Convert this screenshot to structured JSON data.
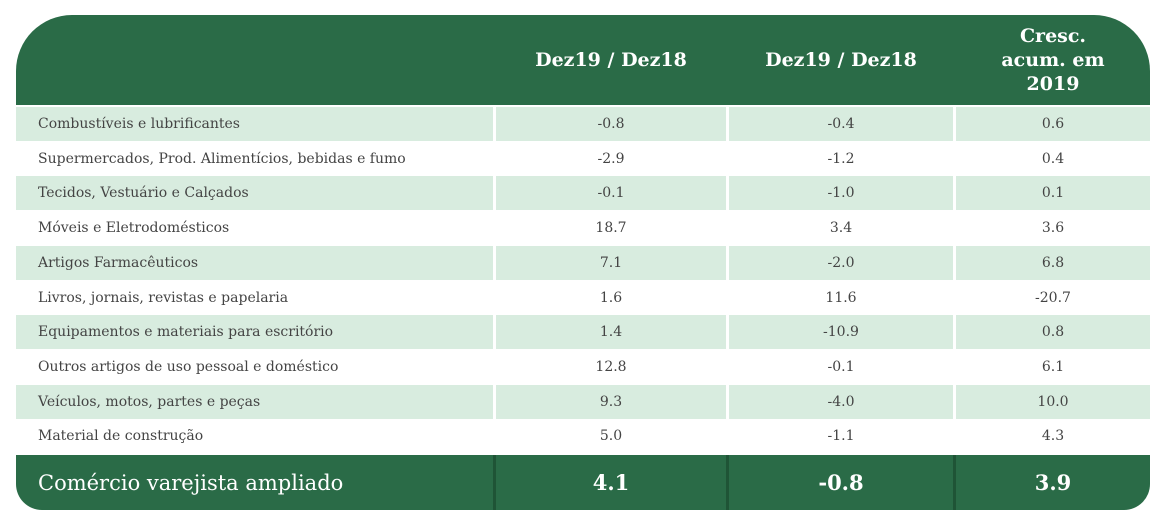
{
  "header": {
    "columns": [
      "Dez19 / Dez18",
      "Dez19 / Dez18",
      "Cresc. acum. em 2019"
    ]
  },
  "table": {
    "rows": [
      [
        "Combustíveis e lubrificantes",
        "-0.8",
        "-0.4",
        "0.6"
      ],
      [
        "Supermercados, Prod. Alimentícios, bebidas e fumo",
        "-2.9",
        "-1.2",
        "0.4"
      ],
      [
        "Tecidos, Vestuário e Calçados",
        "-0.1",
        "-1.0",
        "0.1"
      ],
      [
        "Móveis e Eletrodomésticos",
        "18.7",
        "3.4",
        "3.6"
      ],
      [
        "Artigos Farmacêuticos",
        "7.1",
        "-2.0",
        "6.8"
      ],
      [
        "Livros, jornais, revistas e papelaria",
        "1.6",
        "11.6",
        "-20.7"
      ],
      [
        "Equipamentos e materiais para escritório",
        "1.4",
        "-10.9",
        "0.8"
      ],
      [
        "Outros artigos de uso pessoal e doméstico",
        "12.8",
        "-0.1",
        "6.1"
      ],
      [
        "Veículos, motos, partes e peças",
        "9.3",
        "-4.0",
        "10.0"
      ],
      [
        "Material de construção",
        "5.0",
        "-1.1",
        "4.3"
      ]
    ]
  },
  "footer": [
    "Comércio varejista ampliado",
    "4.1",
    "-0.8",
    "3.9"
  ]
}
